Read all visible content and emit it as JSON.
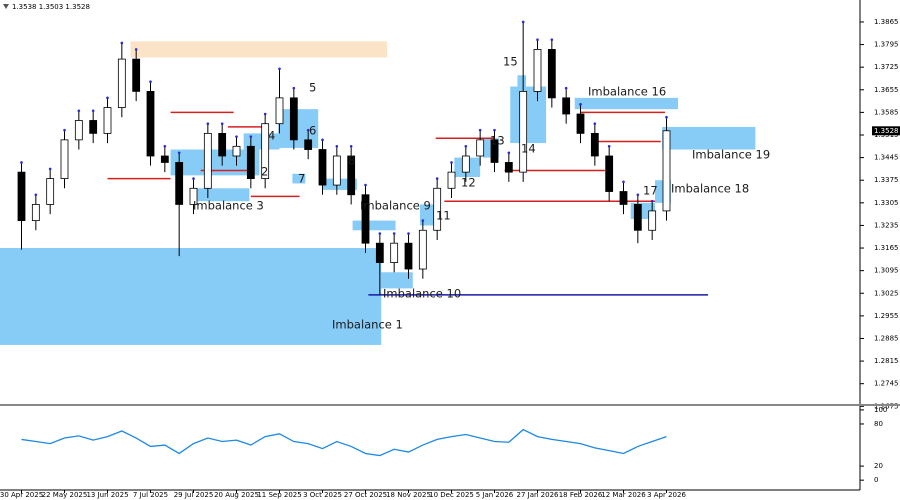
{
  "chart_data": [
    {
      "type": "candlestick",
      "info": "1.3538 1.3503 1.3528",
      "open": [
        1.34,
        1.325,
        1.33,
        1.338,
        1.35,
        1.356,
        1.352,
        1.36,
        1.375,
        1.365,
        1.345,
        1.343,
        1.33,
        1.335,
        1.352,
        1.345,
        1.348,
        1.338,
        1.355,
        1.363,
        1.35,
        1.347,
        1.336,
        1.345,
        1.333,
        1.318,
        1.312,
        1.318,
        1.31,
        1.322,
        1.335,
        1.34,
        1.345,
        1.35,
        1.343,
        1.34,
        1.365,
        1.378,
        1.363,
        1.358,
        1.352,
        1.345,
        1.334,
        1.33,
        1.322,
        1.328
      ],
      "high": [
        1.343,
        1.333,
        1.341,
        1.353,
        1.359,
        1.359,
        1.363,
        1.38,
        1.378,
        1.368,
        1.348,
        1.346,
        1.338,
        1.355,
        1.355,
        1.351,
        1.351,
        1.358,
        1.372,
        1.366,
        1.353,
        1.35,
        1.348,
        1.348,
        1.336,
        1.321,
        1.321,
        1.321,
        1.325,
        1.338,
        1.343,
        1.348,
        1.353,
        1.353,
        1.346,
        1.3865,
        1.381,
        1.381,
        1.366,
        1.361,
        1.355,
        1.348,
        1.337,
        1.333,
        1.331,
        1.357
      ],
      "low": [
        1.316,
        1.322,
        1.327,
        1.335,
        1.347,
        1.349,
        1.349,
        1.357,
        1.362,
        1.342,
        1.34,
        1.314,
        1.327,
        1.332,
        1.342,
        1.342,
        1.335,
        1.335,
        1.352,
        1.347,
        1.344,
        1.333,
        1.333,
        1.33,
        1.315,
        1.302,
        1.309,
        1.307,
        1.307,
        1.319,
        1.332,
        1.337,
        1.342,
        1.34,
        1.337,
        1.337,
        1.362,
        1.36,
        1.355,
        1.349,
        1.342,
        1.331,
        1.327,
        1.318,
        1.319,
        1.325
      ],
      "close": [
        1.325,
        1.33,
        1.338,
        1.35,
        1.356,
        1.352,
        1.36,
        1.375,
        1.365,
        1.345,
        1.343,
        1.33,
        1.335,
        1.352,
        1.345,
        1.348,
        1.338,
        1.355,
        1.363,
        1.35,
        1.347,
        1.336,
        1.345,
        1.333,
        1.318,
        1.312,
        1.318,
        1.31,
        1.322,
        1.335,
        1.34,
        1.345,
        1.35,
        1.343,
        1.34,
        1.365,
        1.378,
        1.363,
        1.358,
        1.352,
        1.345,
        1.334,
        1.33,
        1.322,
        1.328,
        1.3528
      ],
      "up_color": "#ffffff",
      "down_color": "#000000",
      "xlim": [
        -1.5,
        58.5
      ],
      "ylim": [
        1.2679,
        1.3933
      ],
      "yticks": [
        1.3865,
        1.3795,
        1.3725,
        1.3655,
        1.3585,
        1.3515,
        1.3445,
        1.3375,
        1.3305,
        1.3235,
        1.3165,
        1.3095,
        1.3025,
        1.2955,
        1.2885,
        1.2815,
        1.2745,
        1.2675
      ],
      "last_price": 1.3528,
      "zones": [
        {
          "low": 1.3755,
          "high": 1.3805,
          "from": 7.6,
          "to": 25.5,
          "color": "#fbe3c7"
        },
        {
          "label": "Imbalance 1",
          "low": 1.2865,
          "high": 1.3165,
          "from": -1.5,
          "to": 25.1,
          "color": "#87cbf7"
        },
        {
          "label": "Imbalance 10",
          "low": 1.304,
          "high": 1.309,
          "from": 23.6,
          "to": 27.3,
          "color": "#87cbf7"
        },
        {
          "label": "Imbalance 9",
          "low": 1.322,
          "high": 1.325,
          "from": 23.1,
          "to": 26.1,
          "color": "#87cbf7"
        },
        {
          "label": "Imbalance 3",
          "low": 1.331,
          "high": 1.335,
          "from": 12.1,
          "to": 15.9,
          "color": "#87cbf7"
        },
        {
          "label": "2",
          "low": 1.339,
          "high": 1.347,
          "from": 10.4,
          "to": 16.6,
          "color": "#87cbf7"
        },
        {
          "label": "4",
          "low": 1.347,
          "high": 1.352,
          "from": 15.5,
          "to": 18.0,
          "color": "#87cbf7"
        },
        {
          "label": "5",
          "low": 1.35,
          "high": 1.3595,
          "from": 17.9,
          "to": 20.7,
          "color": "#87cbf7"
        },
        {
          "label": "6",
          "low": 1.3475,
          "high": 1.3505,
          "from": 16.5,
          "to": 20.7,
          "color": "#87cbf7"
        },
        {
          "label": "7",
          "low": 1.3365,
          "high": 1.3395,
          "from": 18.9,
          "to": 19.8,
          "color": "#87cbf7"
        },
        {
          "label": "8",
          "low": 1.3345,
          "high": 1.338,
          "from": 21.0,
          "to": 23.4,
          "color": "#87cbf7"
        },
        {
          "label": "11",
          "low": 1.3235,
          "high": 1.33,
          "from": 27.8,
          "to": 29.0,
          "color": "#87cbf7"
        },
        {
          "label": "12",
          "low": 1.3385,
          "high": 1.3445,
          "from": 30.2,
          "to": 32.0,
          "color": "#87cbf7"
        },
        {
          "label": "13",
          "low": 1.3445,
          "high": 1.3505,
          "from": 32.2,
          "to": 33.3,
          "color": "#87cbf7"
        },
        {
          "label": "14",
          "low": 1.349,
          "high": 1.3665,
          "from": 34.1,
          "to": 36.6,
          "color": "#87cbf7"
        },
        {
          "label": "15",
          "low": 1.366,
          "high": 1.37,
          "from": 34.6,
          "to": 35.2,
          "color": "#87cbf7"
        },
        {
          "label": "Imbalance 16",
          "low": 1.3595,
          "high": 1.363,
          "from": 38.6,
          "to": 45.8,
          "color": "#87cbf7"
        },
        {
          "label": "17",
          "low": 1.3255,
          "high": 1.3305,
          "from": 42.5,
          "to": 44.2,
          "color": "#87cbf7"
        },
        {
          "label": "Imbalance 18",
          "low": 1.3305,
          "high": 1.3375,
          "from": 44.2,
          "to": 45.3,
          "color": "#87cbf7"
        },
        {
          "label": "Imbalance 19",
          "low": 1.347,
          "high": 1.354,
          "from": 44.7,
          "to": 51.2,
          "color": "#87cbf7"
        }
      ],
      "lines": [
        {
          "price": 1.338,
          "from": 6.0,
          "to": 10.4,
          "color": "#d42020"
        },
        {
          "price": 1.3585,
          "from": 10.4,
          "to": 14.8,
          "color": "#d42020"
        },
        {
          "price": 1.354,
          "from": 14.4,
          "to": 16.8,
          "color": "#d42020"
        },
        {
          "price": 1.3405,
          "from": 12.5,
          "to": 16.0,
          "color": "#d42020"
        },
        {
          "price": 1.3325,
          "from": 16.0,
          "to": 19.4,
          "color": "#d42020"
        },
        {
          "price": 1.3505,
          "from": 28.9,
          "to": 33.0,
          "color": "#d42020"
        },
        {
          "price": 1.3405,
          "from": 33.7,
          "to": 40.7,
          "color": "#d42020"
        },
        {
          "price": 1.331,
          "from": 29.5,
          "to": 44.2,
          "color": "#d42020"
        },
        {
          "price": 1.3585,
          "from": 39.0,
          "to": 44.9,
          "color": "#d42020"
        },
        {
          "price": 1.3495,
          "from": 40.2,
          "to": 44.6,
          "color": "#d42020"
        },
        {
          "price": 1.302,
          "from": 24.2,
          "to": 47.9,
          "color": "#1a1aa8"
        }
      ]
    },
    {
      "type": "line",
      "values": [
        58,
        55,
        52,
        60,
        63,
        57,
        62,
        70,
        60,
        48,
        50,
        38,
        52,
        60,
        55,
        57,
        50,
        62,
        66,
        55,
        52,
        45,
        55,
        48,
        38,
        35,
        44,
        40,
        50,
        58,
        62,
        65,
        60,
        55,
        54,
        72,
        62,
        58,
        55,
        52,
        46,
        42,
        38,
        48,
        55,
        62
      ],
      "color": "#1e88e5",
      "xlim": [
        -1.5,
        58.5
      ],
      "ylim": [
        -14,
        107
      ],
      "yticks": [
        100,
        80,
        20,
        0
      ],
      "xticks": [
        {
          "value": 0,
          "label": "30 Apr 2025"
        },
        {
          "value": 3,
          "label": "22 May 2025"
        },
        {
          "value": 6,
          "label": "13 Jun 2025"
        },
        {
          "value": 9,
          "label": "7 Jul 2025"
        },
        {
          "value": 12,
          "label": "29 Jul 2025"
        },
        {
          "value": 15,
          "label": "20 Aug 2025"
        },
        {
          "value": 18,
          "label": "11 Sep 2025"
        },
        {
          "value": 21,
          "label": "3 Oct 2025"
        },
        {
          "value": 24,
          "label": "27 Oct 2025"
        },
        {
          "value": 27,
          "label": "18 Nov 2025"
        },
        {
          "value": 30,
          "label": "10 Dec 2025"
        },
        {
          "value": 33,
          "label": "5 Jan 2026"
        },
        {
          "value": 36,
          "label": "27 Jan 2026"
        },
        {
          "value": 39,
          "label": "18 Feb 2026"
        },
        {
          "value": 42,
          "label": "12 Mar 2026"
        },
        {
          "value": 45,
          "label": "3 Apr 2026"
        }
      ]
    }
  ]
}
